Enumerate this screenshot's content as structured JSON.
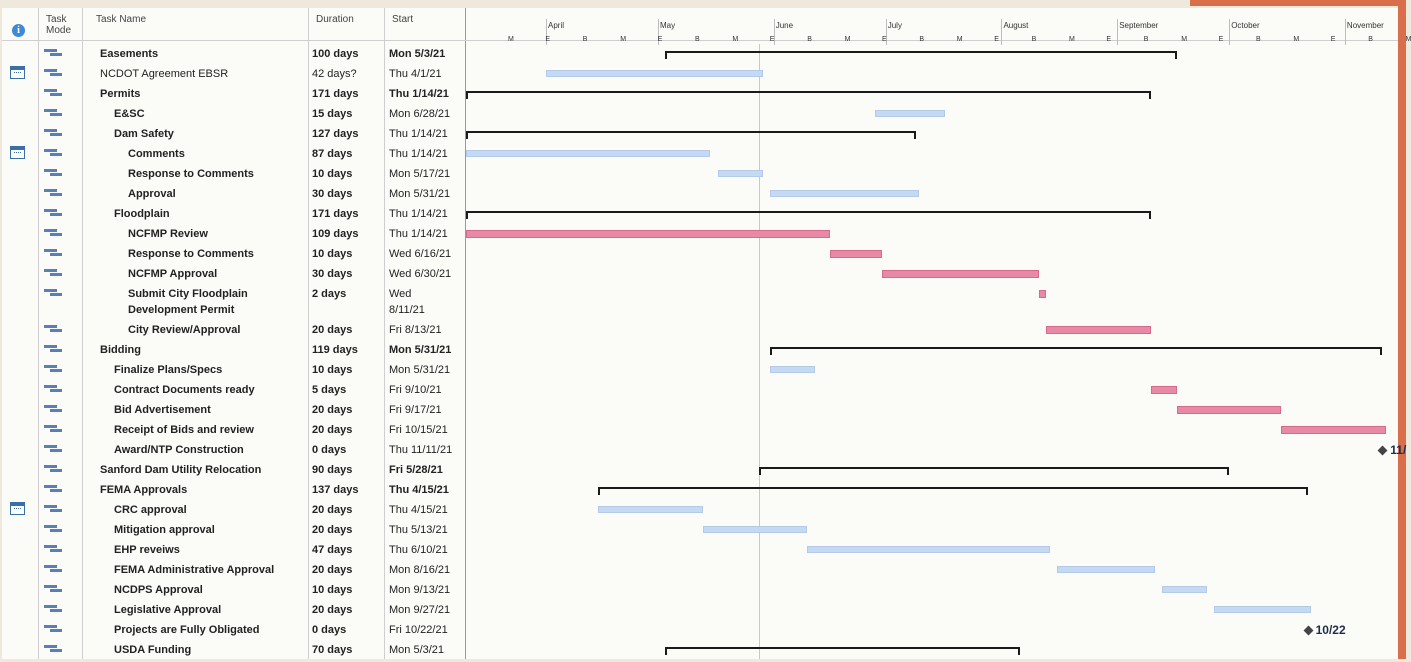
{
  "columns": {
    "task_mode": "Task Mode",
    "task_name": "Task Name",
    "duration": "Duration",
    "start": "Start"
  },
  "timeline": {
    "months": [
      "April",
      "May",
      "June",
      "July",
      "August",
      "September",
      "October",
      "November"
    ],
    "ticks": [
      "M",
      "E",
      "B",
      "M",
      "E",
      "B",
      "M",
      "E",
      "B",
      "M",
      "E",
      "B",
      "M",
      "E",
      "B",
      "M",
      "E",
      "B",
      "M",
      "E",
      "B",
      "M",
      "E",
      "B",
      "M"
    ]
  },
  "tasks": [
    {
      "name": "Easements",
      "duration": "100 days",
      "start": "Mon 5/3/21",
      "bold": true,
      "indent": 0,
      "cal": false
    },
    {
      "name": "NCDOT Agreement EBSR",
      "duration": "42 days?",
      "start": "Thu 4/1/21",
      "bold": false,
      "indent": 0,
      "cal": true
    },
    {
      "name": "Permits",
      "duration": "171 days",
      "start": "Thu 1/14/21",
      "bold": true,
      "indent": 0,
      "cal": false
    },
    {
      "name": "E&SC",
      "duration": "15 days",
      "start": "Mon 6/28/21",
      "bold": true,
      "indent": 1,
      "cal": false
    },
    {
      "name": "Dam Safety",
      "duration": "127 days",
      "start": "Thu 1/14/21",
      "bold": true,
      "indent": 1,
      "cal": false
    },
    {
      "name": "Comments",
      "duration": "87 days",
      "start": "Thu 1/14/21",
      "bold": true,
      "indent": 2,
      "cal": true
    },
    {
      "name": "Response to Comments",
      "duration": "10 days",
      "start": "Mon 5/17/21",
      "bold": true,
      "indent": 2,
      "cal": false
    },
    {
      "name": "Approval",
      "duration": "30 days",
      "start": "Mon 5/31/21",
      "bold": true,
      "indent": 2,
      "cal": false
    },
    {
      "name": "Floodplain",
      "duration": "171 days",
      "start": "Thu 1/14/21",
      "bold": true,
      "indent": 1,
      "cal": false
    },
    {
      "name": "NCFMP Review",
      "duration": "109 days",
      "start": "Thu 1/14/21",
      "bold": true,
      "indent": 2,
      "cal": false
    },
    {
      "name": "Response to Comments",
      "duration": "10 days",
      "start": "Wed 6/16/21",
      "bold": true,
      "indent": 2,
      "cal": false
    },
    {
      "name": "NCFMP Approval",
      "duration": "30 days",
      "start": "Wed 6/30/21",
      "bold": true,
      "indent": 2,
      "cal": false
    },
    {
      "name": "Submit City Floodplain",
      "name2": "Development Permit",
      "duration": "2 days",
      "start": "Wed",
      "start2": "8/11/21",
      "bold": true,
      "indent": 2,
      "cal": false
    },
    {
      "name": "City Review/Approval",
      "duration": "20 days",
      "start": "Fri 8/13/21",
      "bold": true,
      "indent": 2,
      "cal": false
    },
    {
      "name": "Bidding",
      "duration": "119 days",
      "start": "Mon 5/31/21",
      "bold": true,
      "indent": 0,
      "cal": false
    },
    {
      "name": "Finalize Plans/Specs",
      "duration": "10 days",
      "start": "Mon 5/31/21",
      "bold": true,
      "indent": 1,
      "cal": false
    },
    {
      "name": "Contract Documents ready",
      "duration": "5 days",
      "start": "Fri 9/10/21",
      "bold": true,
      "indent": 1,
      "cal": false
    },
    {
      "name": "Bid Advertisement",
      "duration": "20 days",
      "start": "Fri 9/17/21",
      "bold": true,
      "indent": 1,
      "cal": false
    },
    {
      "name": "Receipt of Bids and review",
      "duration": "20 days",
      "start": "Fri 10/15/21",
      "bold": true,
      "indent": 1,
      "cal": false
    },
    {
      "name": "Award/NTP Construction",
      "duration": "0 days",
      "start": "Thu 11/11/21",
      "bold": true,
      "indent": 1,
      "cal": false
    },
    {
      "name": "Sanford Dam Utility Relocation",
      "duration": "90 days",
      "start": "Fri 5/28/21",
      "bold": true,
      "indent": 0,
      "cal": false
    },
    {
      "name": "FEMA Approvals",
      "duration": "137 days",
      "start": "Thu 4/15/21",
      "bold": true,
      "indent": 0,
      "cal": false
    },
    {
      "name": "CRC approval",
      "duration": "20 days",
      "start": "Thu 4/15/21",
      "bold": true,
      "indent": 1,
      "cal": true
    },
    {
      "name": "Mitigation approval",
      "duration": "20 days",
      "start": "Thu 5/13/21",
      "bold": true,
      "indent": 1,
      "cal": false
    },
    {
      "name": "EHP reveiws",
      "duration": "47 days",
      "start": "Thu 6/10/21",
      "bold": true,
      "indent": 1,
      "cal": false
    },
    {
      "name": "FEMA Administrative Approval",
      "duration": "20 days",
      "start": "Mon 8/16/21",
      "bold": true,
      "indent": 1,
      "cal": false
    },
    {
      "name": "NCDPS Approval",
      "duration": "10 days",
      "start": "Mon 9/13/21",
      "bold": true,
      "indent": 1,
      "cal": false
    },
    {
      "name": "Legislative Approval",
      "duration": "20 days",
      "start": "Mon 9/27/21",
      "bold": true,
      "indent": 1,
      "cal": false
    },
    {
      "name": "Projects are Fully Obligated",
      "duration": "0 days",
      "start": "Fri 10/22/21",
      "bold": true,
      "indent": 1,
      "cal": false
    },
    {
      "name": "USDA Funding",
      "duration": "70 days",
      "start": "Mon 5/3/21",
      "bold": true,
      "indent": 1,
      "cal": false
    }
  ],
  "gantt_bars": [
    {
      "row": 0,
      "kind": "summary",
      "start": "5/3/21",
      "finish": "9/17/21"
    },
    {
      "row": 1,
      "kind": "task",
      "color": "blue",
      "start": "4/1/21",
      "finish": "5/28/21"
    },
    {
      "row": 2,
      "kind": "summary",
      "start": "1/14/21",
      "finish": "9/10/21"
    },
    {
      "row": 3,
      "kind": "task",
      "color": "blue",
      "start": "6/28/21",
      "finish": "7/16/21"
    },
    {
      "row": 4,
      "kind": "summary",
      "start": "1/14/21",
      "finish": "7/9/21"
    },
    {
      "row": 5,
      "kind": "task",
      "color": "blue",
      "start": "1/14/21",
      "finish": "5/14/21"
    },
    {
      "row": 6,
      "kind": "task",
      "color": "blue",
      "start": "5/17/21",
      "finish": "5/28/21"
    },
    {
      "row": 7,
      "kind": "task",
      "color": "blue",
      "start": "5/31/21",
      "finish": "7/9/21"
    },
    {
      "row": 8,
      "kind": "summary",
      "start": "1/14/21",
      "finish": "9/10/21"
    },
    {
      "row": 9,
      "kind": "task",
      "color": "red",
      "start": "1/14/21",
      "finish": "6/15/21"
    },
    {
      "row": 10,
      "kind": "task",
      "color": "red",
      "start": "6/16/21",
      "finish": "6/29/21"
    },
    {
      "row": 11,
      "kind": "task",
      "color": "red",
      "start": "6/30/21",
      "finish": "8/10/21"
    },
    {
      "row": 12,
      "kind": "task",
      "color": "red",
      "start": "8/11/21",
      "finish": "8/12/21"
    },
    {
      "row": 13,
      "kind": "task",
      "color": "red",
      "start": "8/13/21",
      "finish": "9/9/21"
    },
    {
      "row": 14,
      "kind": "summary",
      "start": "5/31/21",
      "finish": "11/11/21"
    },
    {
      "row": 15,
      "kind": "task",
      "color": "blue",
      "start": "5/31/21",
      "finish": "6/11/21"
    },
    {
      "row": 16,
      "kind": "task",
      "color": "red",
      "start": "9/10/21",
      "finish": "9/16/21"
    },
    {
      "row": 17,
      "kind": "task",
      "color": "red",
      "start": "9/17/21",
      "finish": "10/14/21"
    },
    {
      "row": 18,
      "kind": "task",
      "color": "red",
      "start": "10/15/21",
      "finish": "11/11/21"
    },
    {
      "row": 19,
      "kind": "milestone",
      "date": "11/11/21",
      "label": "11/"
    },
    {
      "row": 20,
      "kind": "summary",
      "start": "5/28/21",
      "finish": "10/1/21"
    },
    {
      "row": 21,
      "kind": "summary",
      "start": "4/15/21",
      "finish": "10/22/21"
    },
    {
      "row": 22,
      "kind": "task",
      "color": "blue",
      "start": "4/15/21",
      "finish": "5/12/21"
    },
    {
      "row": 23,
      "kind": "task",
      "color": "blue",
      "start": "5/13/21",
      "finish": "6/9/21"
    },
    {
      "row": 24,
      "kind": "task",
      "color": "blue",
      "start": "6/10/21",
      "finish": "8/13/21"
    },
    {
      "row": 25,
      "kind": "task",
      "color": "blue",
      "start": "8/16/21",
      "finish": "9/10/21"
    },
    {
      "row": 26,
      "kind": "task",
      "color": "blue",
      "start": "9/13/21",
      "finish": "9/24/21"
    },
    {
      "row": 27,
      "kind": "task",
      "color": "blue",
      "start": "9/27/21",
      "finish": "10/22/21"
    },
    {
      "row": 28,
      "kind": "milestone",
      "date": "10/22/21",
      "label": "10/22"
    },
    {
      "row": 29,
      "kind": "summary",
      "start": "5/3/21",
      "finish": "8/6/21"
    }
  ]
}
